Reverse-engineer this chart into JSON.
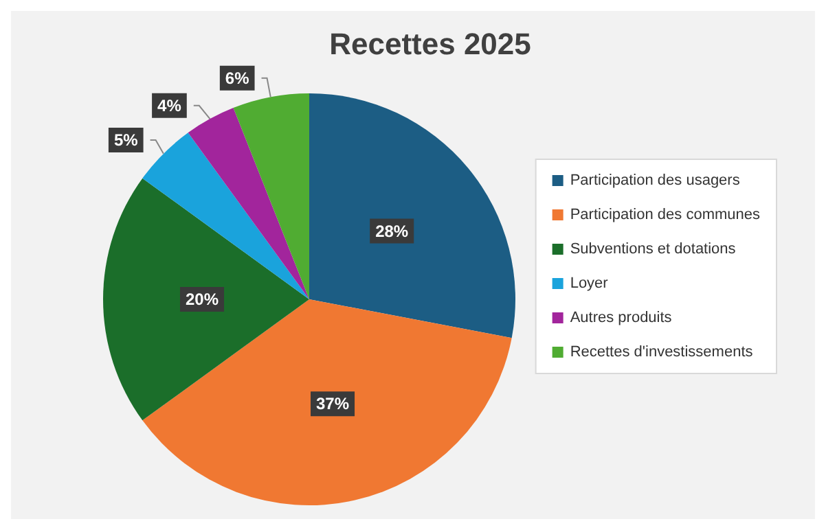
{
  "chart_data": {
    "type": "pie",
    "title": "Recettes 2025",
    "categories": [
      "Participation des usagers",
      "Participation des communes",
      "Subventions et dotations",
      "Loyer",
      "Autres produits",
      "Recettes d'investissements"
    ],
    "values": [
      28,
      37,
      20,
      5,
      4,
      6
    ],
    "value_labels": [
      "28%",
      "37%",
      "20%",
      "5%",
      "4%",
      "6%"
    ],
    "colors": [
      "#1c5d84",
      "#f07832",
      "#1b6e2a",
      "#1aa3dc",
      "#a2259c",
      "#50ac32"
    ],
    "legend": "right"
  }
}
